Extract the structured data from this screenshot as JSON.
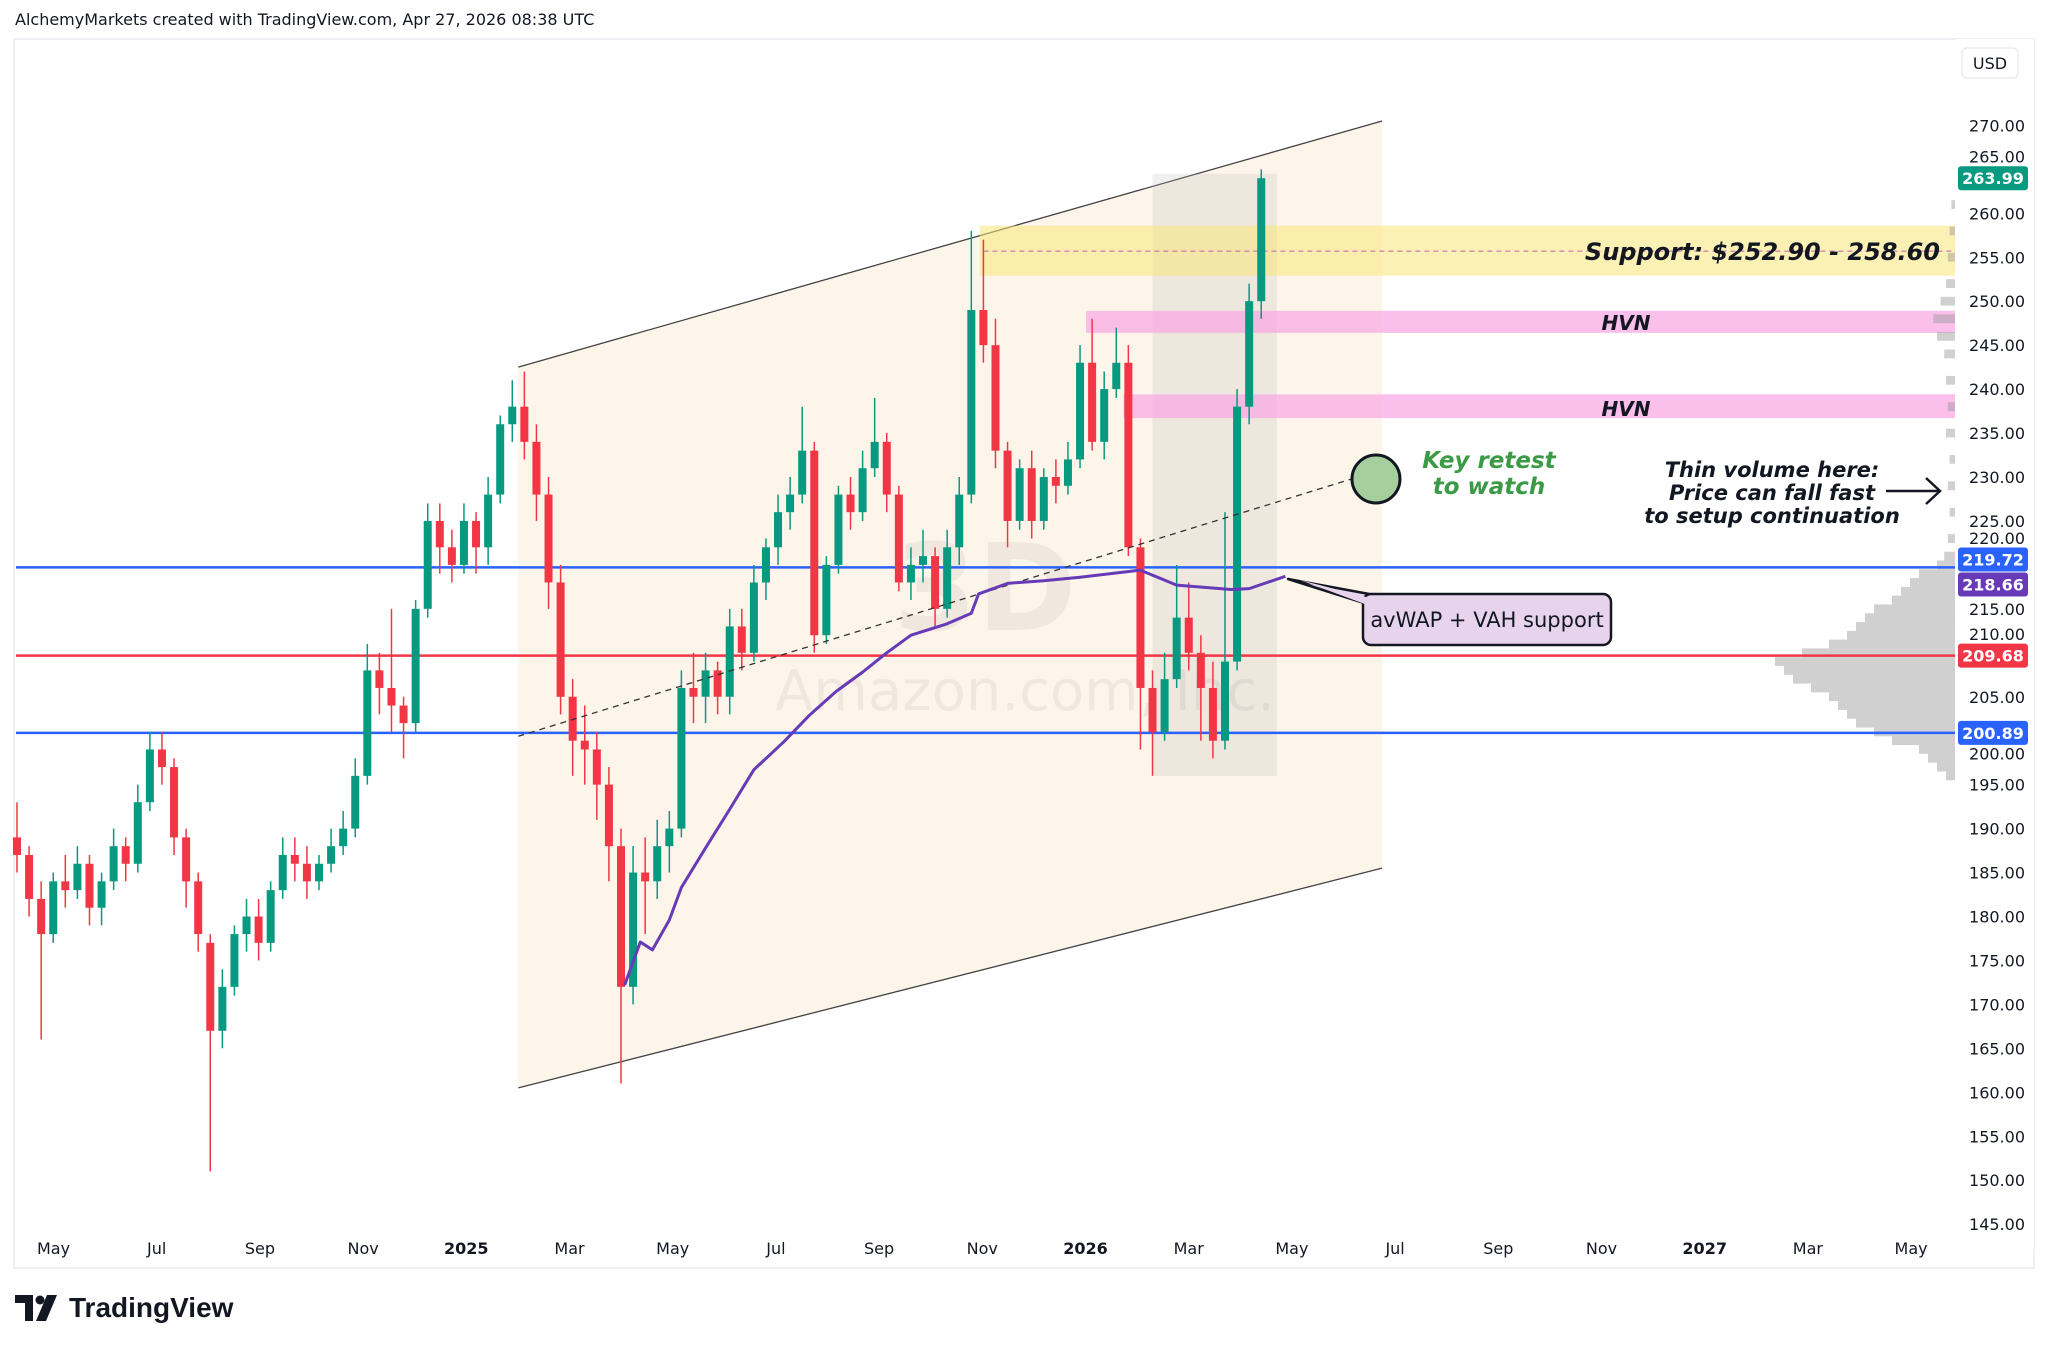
{
  "header": {
    "text": "AlchemyMarkets created with TradingView.com, Apr 27, 2026 08:38 UTC"
  },
  "logo": {
    "text": "TradingView"
  },
  "watermark": {
    "interval": "3D",
    "name": "Amazon.com, Inc."
  },
  "colors": {
    "up": "#089981",
    "down": "#f23645",
    "blue": "#2962ff",
    "purple": "#673ab7",
    "red": "#f23645",
    "channel": "#fdf5ea",
    "support": "#fbeea0",
    "hvn": "#f9b8e8",
    "green_text": "#3a9a45"
  },
  "annotations": {
    "support": "Support: $252.90 - 258.60",
    "hvn1": "HVN",
    "hvn2": "HVN",
    "key_retest_1": "Key retest",
    "key_retest_2": "to watch",
    "thin_1": "Thin volume here:",
    "thin_2": "Price can fall fast",
    "thin_3": "to setup continuation",
    "callout": "avWAP + VAH support"
  },
  "chart_data": {
    "type": "candlestick",
    "currency": "USD",
    "ylim": [
      145,
      270
    ],
    "yticks": [
      145,
      150,
      155,
      160,
      165,
      170,
      175,
      180,
      185,
      190,
      195,
      200,
      205,
      210,
      215,
      220,
      225,
      230,
      235,
      240,
      245,
      250,
      255,
      260,
      265,
      270
    ],
    "xticks": [
      {
        "label": "May",
        "m": 4
      },
      {
        "label": "Jul",
        "m": 6
      },
      {
        "label": "Sep",
        "m": 8
      },
      {
        "label": "Nov",
        "m": 10
      },
      {
        "label": "2025",
        "m": 12,
        "bold": true
      },
      {
        "label": "Mar",
        "m": 14
      },
      {
        "label": "May",
        "m": 16
      },
      {
        "label": "Jul",
        "m": 18
      },
      {
        "label": "Sep",
        "m": 20
      },
      {
        "label": "Nov",
        "m": 22
      },
      {
        "label": "2026",
        "m": 24,
        "bold": true
      },
      {
        "label": "Mar",
        "m": 26
      },
      {
        "label": "May",
        "m": 28
      },
      {
        "label": "Jul",
        "m": 30
      },
      {
        "label": "Sep",
        "m": 32
      },
      {
        "label": "Nov",
        "m": 34
      },
      {
        "label": "2027",
        "m": 36,
        "bold": true
      },
      {
        "label": "Mar",
        "m": 38
      },
      {
        "label": "May",
        "m": 40
      }
    ],
    "ohlc": [
      [
        189,
        193,
        185,
        187
      ],
      [
        187,
        188,
        180,
        182
      ],
      [
        182,
        184,
        166,
        178
      ],
      [
        178,
        185,
        177,
        184
      ],
      [
        184,
        187,
        181,
        183
      ],
      [
        183,
        188,
        182,
        186
      ],
      [
        186,
        187,
        179,
        181
      ],
      [
        181,
        185,
        179,
        184
      ],
      [
        184,
        190,
        183,
        188
      ],
      [
        188,
        189,
        184,
        186
      ],
      [
        186,
        195,
        185,
        193
      ],
      [
        193,
        201,
        192,
        199
      ],
      [
        199,
        201,
        195,
        197
      ],
      [
        197,
        198,
        187,
        189
      ],
      [
        189,
        190,
        181,
        184
      ],
      [
        184,
        185,
        176,
        178
      ],
      [
        177,
        178,
        151,
        167
      ],
      [
        167,
        174,
        165,
        172
      ],
      [
        172,
        179,
        171,
        178
      ],
      [
        178,
        182,
        176,
        180
      ],
      [
        180,
        182,
        175,
        177
      ],
      [
        177,
        184,
        176,
        183
      ],
      [
        183,
        189,
        182,
        187
      ],
      [
        187,
        189,
        184,
        186
      ],
      [
        186,
        188,
        182,
        184
      ],
      [
        184,
        187,
        183,
        186
      ],
      [
        186,
        190,
        185,
        188
      ],
      [
        188,
        192,
        187,
        190
      ],
      [
        190,
        198,
        189,
        196
      ],
      [
        196,
        211,
        195,
        208
      ],
      [
        208,
        210,
        203,
        206
      ],
      [
        206,
        215,
        201,
        204
      ],
      [
        204,
        205,
        198,
        202
      ],
      [
        202,
        216,
        201,
        215
      ],
      [
        215,
        227,
        214,
        225
      ],
      [
        225,
        227,
        219,
        222
      ],
      [
        222,
        224,
        218,
        220
      ],
      [
        220,
        227,
        219,
        225
      ],
      [
        225,
        226,
        219,
        222
      ],
      [
        222,
        230,
        220,
        228
      ],
      [
        228,
        237,
        227,
        236
      ],
      [
        236,
        241,
        234,
        238
      ],
      [
        238,
        242,
        232,
        234
      ],
      [
        234,
        236,
        225,
        228
      ],
      [
        228,
        230,
        215,
        218
      ],
      [
        218,
        220,
        203,
        205
      ],
      [
        205,
        207,
        196,
        200
      ],
      [
        200,
        204,
        195,
        199
      ],
      [
        199,
        201,
        191,
        195
      ],
      [
        195,
        197,
        184,
        188
      ],
      [
        188,
        190,
        161,
        172
      ],
      [
        172,
        188,
        170,
        185
      ],
      [
        185,
        189,
        178,
        184
      ],
      [
        184,
        191,
        182,
        188
      ],
      [
        188,
        192,
        185,
        190
      ],
      [
        190,
        208,
        189,
        206
      ],
      [
        206,
        210,
        202,
        205
      ],
      [
        205,
        210,
        202,
        208
      ],
      [
        208,
        209,
        203,
        205
      ],
      [
        205,
        215,
        203,
        213
      ],
      [
        213,
        215,
        208,
        210
      ],
      [
        210,
        220,
        209,
        218
      ],
      [
        218,
        223,
        216,
        222
      ],
      [
        222,
        228,
        220,
        226
      ],
      [
        226,
        230,
        224,
        228
      ],
      [
        228,
        238,
        227,
        233
      ],
      [
        233,
        234,
        210,
        212
      ],
      [
        212,
        221,
        211,
        220
      ],
      [
        220,
        229,
        219,
        228
      ],
      [
        228,
        230,
        224,
        226
      ],
      [
        226,
        233,
        225,
        231
      ],
      [
        231,
        239,
        230,
        234
      ],
      [
        234,
        235,
        226,
        228
      ],
      [
        228,
        229,
        217,
        218
      ],
      [
        218,
        222,
        216,
        220
      ],
      [
        220,
        224,
        218,
        221
      ],
      [
        221,
        222,
        213,
        215
      ],
      [
        215,
        224,
        214,
        222
      ],
      [
        222,
        230,
        220,
        228
      ],
      [
        228,
        258,
        227,
        249
      ],
      [
        249,
        257,
        243,
        245
      ],
      [
        245,
        248,
        231,
        233
      ],
      [
        233,
        234,
        222,
        225
      ],
      [
        225,
        232,
        224,
        231
      ],
      [
        231,
        233,
        223,
        225
      ],
      [
        225,
        231,
        224,
        230
      ],
      [
        230,
        232,
        227,
        229
      ],
      [
        229,
        234,
        228,
        232
      ],
      [
        232,
        245,
        231,
        243
      ],
      [
        243,
        248,
        233,
        234
      ],
      [
        234,
        242,
        232,
        240
      ],
      [
        240,
        247,
        239,
        243
      ],
      [
        243,
        245,
        221,
        222
      ],
      [
        222,
        223,
        199,
        206
      ],
      [
        206,
        208,
        196,
        201
      ],
      [
        201,
        210,
        200,
        207
      ],
      [
        207,
        220,
        206,
        214
      ],
      [
        214,
        218,
        208,
        210
      ],
      [
        210,
        212,
        200,
        206
      ],
      [
        206,
        209,
        198,
        200
      ],
      [
        200,
        226,
        199,
        209
      ],
      [
        209,
        240,
        208,
        238
      ],
      [
        238,
        252,
        236,
        250
      ],
      [
        250,
        265,
        248,
        263.99
      ]
    ],
    "avwap": [
      [
        50.3,
        172.2
      ],
      [
        51.6,
        177.1
      ],
      [
        52.6,
        176.2
      ],
      [
        54,
        179.6
      ],
      [
        55,
        183.3
      ],
      [
        57,
        187.8
      ],
      [
        59,
        192.2
      ],
      [
        61,
        196.7
      ],
      [
        63.5,
        199.9
      ],
      [
        65.6,
        202.9
      ],
      [
        67.8,
        205.6
      ],
      [
        70,
        207.8
      ],
      [
        72,
        210.0
      ],
      [
        74,
        212.0
      ],
      [
        77,
        213.3
      ],
      [
        79,
        214.5
      ],
      [
        79.6,
        216.7
      ],
      [
        82,
        217.9
      ],
      [
        85,
        218.2
      ],
      [
        88,
        218.6
      ],
      [
        93,
        219.4
      ],
      [
        96,
        217.7
      ],
      [
        100.5,
        217.2
      ],
      [
        102,
        217.3
      ],
      [
        105,
        218.7
      ]
    ],
    "channel": {
      "upper": [
        [
          41.5,
          242.5
        ],
        [
          113,
          270.5
        ]
      ],
      "lower": [
        [
          41.5,
          160.5
        ],
        [
          113,
          185.5
        ]
      ]
    },
    "midline": [
      [
        41.5,
        200.5
      ],
      [
        111,
        230
      ]
    ],
    "support_zone": [
      252.9,
      258.6
    ],
    "support_mid": 255.7,
    "hvn_zones": [
      [
        246.4,
        248.9
      ],
      [
        236.7,
        239.4
      ]
    ],
    "consolidation_box": {
      "from_index": 94,
      "to_index": 104.3,
      "high": 264.5,
      "low": 196
    },
    "levels": [
      {
        "value": 219.72,
        "label": "219.72",
        "color": "#2962ff"
      },
      {
        "value": 209.68,
        "label": "209.68",
        "color": "#f23645"
      },
      {
        "value": 200.89,
        "label": "200.89",
        "color": "#2962ff"
      }
    ],
    "price_labels": [
      {
        "value": 263.99,
        "label": "263.99",
        "color": "#089981"
      },
      {
        "value": 219.72,
        "label": "219.72",
        "color": "#2962ff"
      },
      {
        "value": 218.66,
        "label": "218.66",
        "color": "#673ab7"
      },
      {
        "value": 209.68,
        "label": "209.68",
        "color": "#f23645"
      },
      {
        "value": 200.89,
        "label": "200.89",
        "color": "#2962ff"
      }
    ],
    "volume_profile": [
      [
        196,
        0.05
      ],
      [
        197,
        0.1
      ],
      [
        198,
        0.15
      ],
      [
        199,
        0.2
      ],
      [
        200,
        0.35
      ],
      [
        201,
        0.45
      ],
      [
        202,
        0.55
      ],
      [
        203,
        0.6
      ],
      [
        204,
        0.65
      ],
      [
        205,
        0.7
      ],
      [
        206,
        0.8
      ],
      [
        207,
        0.9
      ],
      [
        208,
        0.95
      ],
      [
        209,
        1.0
      ],
      [
        210,
        0.85
      ],
      [
        211,
        0.7
      ],
      [
        212,
        0.6
      ],
      [
        213,
        0.55
      ],
      [
        214,
        0.5
      ],
      [
        215,
        0.45
      ],
      [
        216,
        0.35
      ],
      [
        217,
        0.3
      ],
      [
        218,
        0.25
      ],
      [
        219,
        0.2
      ],
      [
        220,
        0.1
      ],
      [
        221,
        0.06
      ],
      [
        223,
        0.04
      ],
      [
        226,
        0.03
      ],
      [
        229,
        0.04
      ],
      [
        232,
        0.03
      ],
      [
        235,
        0.05
      ],
      [
        238,
        0.04
      ],
      [
        241,
        0.05
      ],
      [
        244,
        0.06
      ],
      [
        246,
        0.1
      ],
      [
        248,
        0.12
      ],
      [
        250,
        0.08
      ],
      [
        252,
        0.05
      ],
      [
        255,
        0.04
      ],
      [
        258,
        0.03
      ],
      [
        261,
        0.02
      ]
    ]
  }
}
